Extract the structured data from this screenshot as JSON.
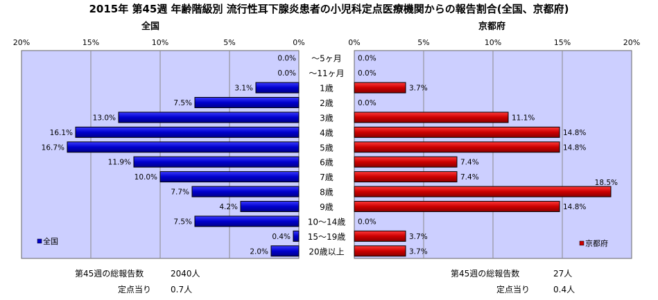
{
  "title": "2015年 第45週 年齢階級別 流行性耳下腺炎患者の小児科定点医療機関からの報告割合(全国、京都府)",
  "chart_data": {
    "type": "bar",
    "orientation": "horizontal-butterfly",
    "categories": [
      "～5ヶ月",
      "～11ヶ月",
      "1歳",
      "2歳",
      "3歳",
      "4歳",
      "5歳",
      "6歳",
      "7歳",
      "8歳",
      "9歳",
      "10～14歳",
      "15～19歳",
      "20歳以上"
    ],
    "xlim": [
      0,
      20
    ],
    "ticks": [
      "0%",
      "5%",
      "10%",
      "15%",
      "20%"
    ],
    "grid": true,
    "series": [
      {
        "name": "全国",
        "side": "left",
        "color": "#0000cc",
        "values": [
          0.0,
          0.0,
          3.1,
          7.5,
          13.0,
          16.1,
          16.7,
          11.9,
          10.0,
          7.7,
          4.2,
          7.5,
          0.4,
          2.0
        ],
        "labels": [
          "0.0%",
          "0.0%",
          "3.1%",
          "7.5%",
          "13.0%",
          "16.1%",
          "16.7%",
          "11.9%",
          "10.0%",
          "7.7%",
          "4.2%",
          "7.5%",
          "0.4%",
          "2.0%"
        ],
        "legend_position": "bottom-left"
      },
      {
        "name": "京都府",
        "side": "right",
        "color": "#cc0000",
        "values": [
          0.0,
          0.0,
          3.7,
          0.0,
          11.1,
          14.8,
          14.8,
          7.4,
          7.4,
          18.5,
          14.8,
          0.0,
          3.7,
          3.7
        ],
        "labels": [
          "0.0%",
          "0.0%",
          "3.7%",
          "0.0%",
          "11.1%",
          "14.8%",
          "14.8%",
          "7.4%",
          "7.4%",
          "18.5%",
          "14.8%",
          "0.0%",
          "3.7%",
          "3.7%"
        ],
        "legend_position": "bottom-right"
      }
    ]
  },
  "panels": {
    "left_title": "全国",
    "right_title": "京都府"
  },
  "footer": {
    "left_total_label": "第45週の総報告数",
    "left_total_value": "2040人",
    "left_perpoint_label": "定点当り",
    "left_perpoint_value": "0.7人",
    "right_total_label": "第45週の総報告数",
    "right_total_value": "27人",
    "right_perpoint_label": "定点当り",
    "right_perpoint_value": "0.4人"
  },
  "colors": {
    "plot_background": "#cccfff",
    "grid": "#8a8a8a"
  }
}
